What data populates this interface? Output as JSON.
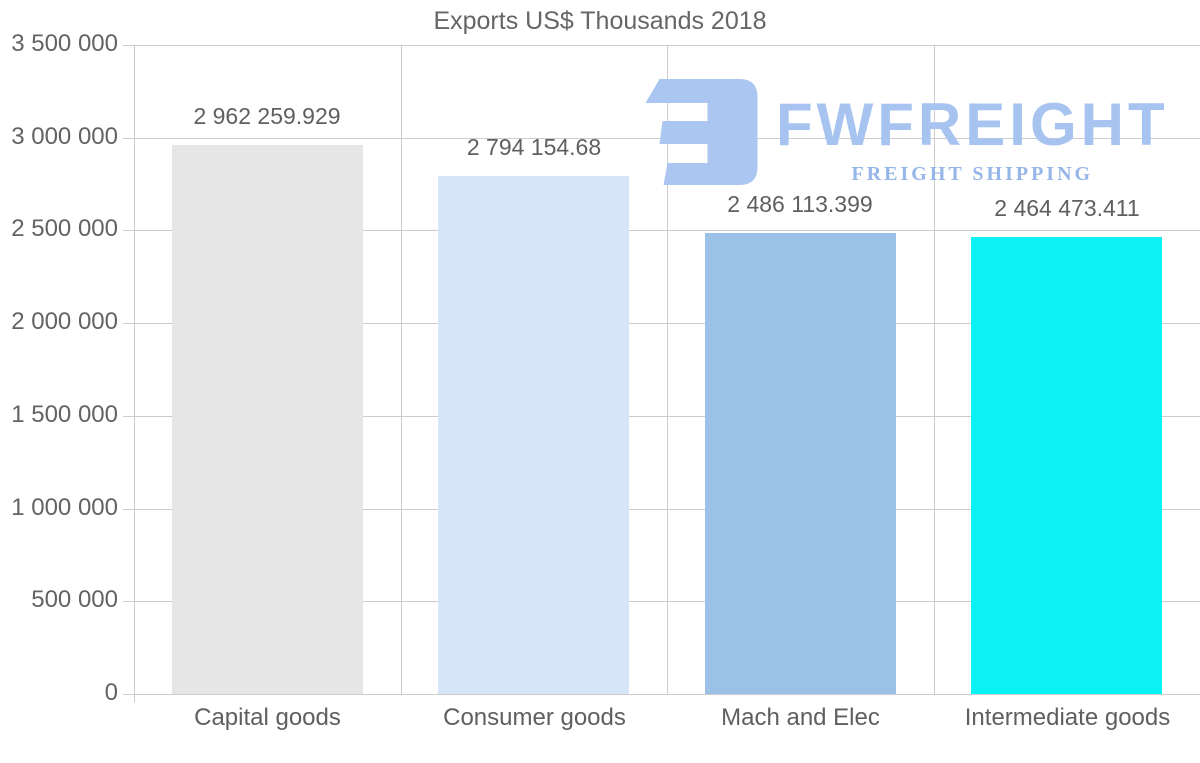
{
  "title": "Exports US$ Thousands 2018",
  "watermark": {
    "brand": "FWFREIGHT",
    "tagline": "FREIGHT SHIPPING",
    "icon": "mirrored-e-freight-logo",
    "icon_color": "#abc6f1",
    "brand_color": "#a7c3f0",
    "tagline_color": "#96b5e8"
  },
  "chart_data": {
    "type": "bar",
    "title": "Exports US$ Thousands 2018",
    "categories": [
      "Capital goods",
      "Consumer goods",
      "Mach and Elec",
      "Intermediate goods"
    ],
    "values": [
      2962259.929,
      2794154.68,
      2486113.399,
      2464473.411
    ],
    "value_labels": [
      "2 962 259.929",
      "2 794 154.68",
      "2 486 113.399",
      "2 464 473.411"
    ],
    "bar_colors": [
      "#e6e6e6",
      "#d6e6f8",
      "#9bc2e6",
      "#0af2f4"
    ],
    "xlabel": "",
    "ylabel": "",
    "ylim": [
      0,
      3500000
    ],
    "ytick_step": 500000,
    "ytick_labels": [
      "0",
      "500 000",
      "1 000 000",
      "1 500 000",
      "2 000 000",
      "2 500 000",
      "3 000 000",
      "3 500 000"
    ],
    "grid": true,
    "gridline_color": "#cccccc",
    "text_color": "#5f5f5f",
    "legend_position": "none"
  }
}
